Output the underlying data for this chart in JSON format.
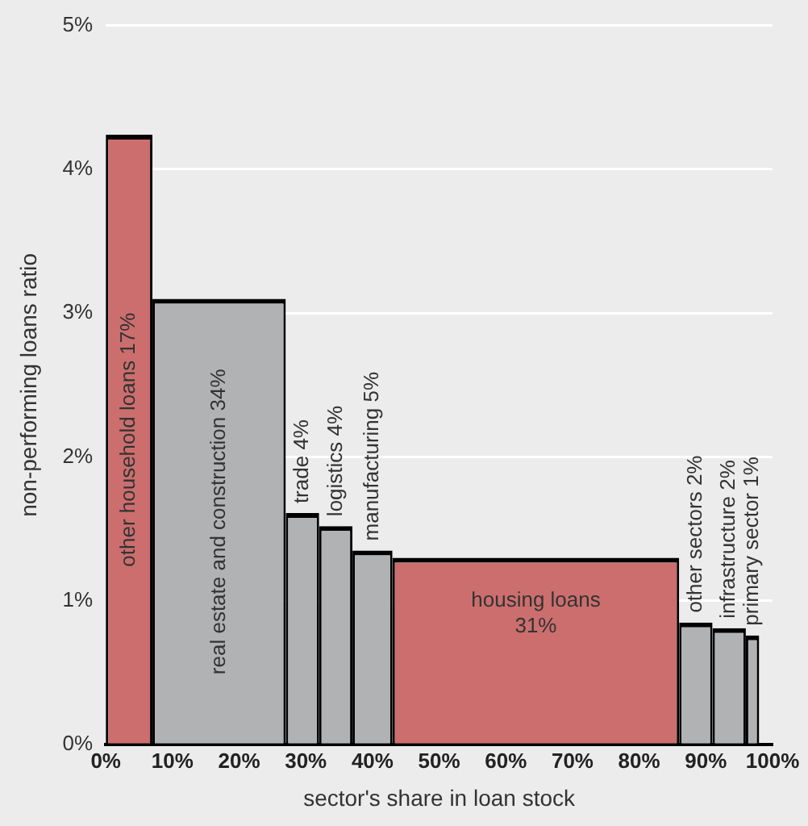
{
  "chart_data": {
    "type": "histogram",
    "xlabel": "sector's share in loan stock",
    "ylabel": "non-performing loans ratio",
    "bins": [
      0,
      7,
      27,
      32,
      37,
      43,
      86,
      91,
      96,
      98
    ],
    "values": [
      4.24,
      3.1,
      1.61,
      1.52,
      1.35,
      1.3,
      0.85,
      0.81,
      0.76
    ],
    "colors": [
      "#cc6e6e",
      "#b1b2b4",
      "#b1b2b4",
      "#b1b2b4",
      "#b1b2b4",
      "#cc6e6e",
      "#b1b2b4",
      "#b1b2b4",
      "#b1b2b4"
    ],
    "xlim": [
      0,
      100
    ],
    "xticks": [
      {
        "value": 0,
        "label": "0%"
      },
      {
        "value": 10,
        "label": "10%"
      },
      {
        "value": 20,
        "label": "20%"
      },
      {
        "value": 30,
        "label": "30%"
      },
      {
        "value": 40,
        "label": "40%"
      },
      {
        "value": 50,
        "label": "50%"
      },
      {
        "value": 60,
        "label": "60%"
      },
      {
        "value": 70,
        "label": "70%"
      },
      {
        "value": 80,
        "label": "80%"
      },
      {
        "value": 90,
        "label": "90%"
      },
      {
        "value": 100,
        "label": "100%"
      }
    ],
    "ylim": [
      0,
      5
    ],
    "yticks": [
      {
        "value": 0,
        "label": "0%"
      },
      {
        "value": 1,
        "label": "1%"
      },
      {
        "value": 2,
        "label": "2%"
      },
      {
        "value": 3,
        "label": "3%"
      },
      {
        "value": 4,
        "label": "4%"
      },
      {
        "value": 5,
        "label": "5%"
      }
    ],
    "grid": "y",
    "legend": false,
    "annotations": [
      "other household loans 17%",
      "real estate and construction 34%",
      "trade 4%",
      "logistics 4%",
      "manufacturing 5%",
      "housing loans 31%",
      "other sectors 2%",
      "infrastructure 2%",
      "primary sector 1%"
    ]
  }
}
